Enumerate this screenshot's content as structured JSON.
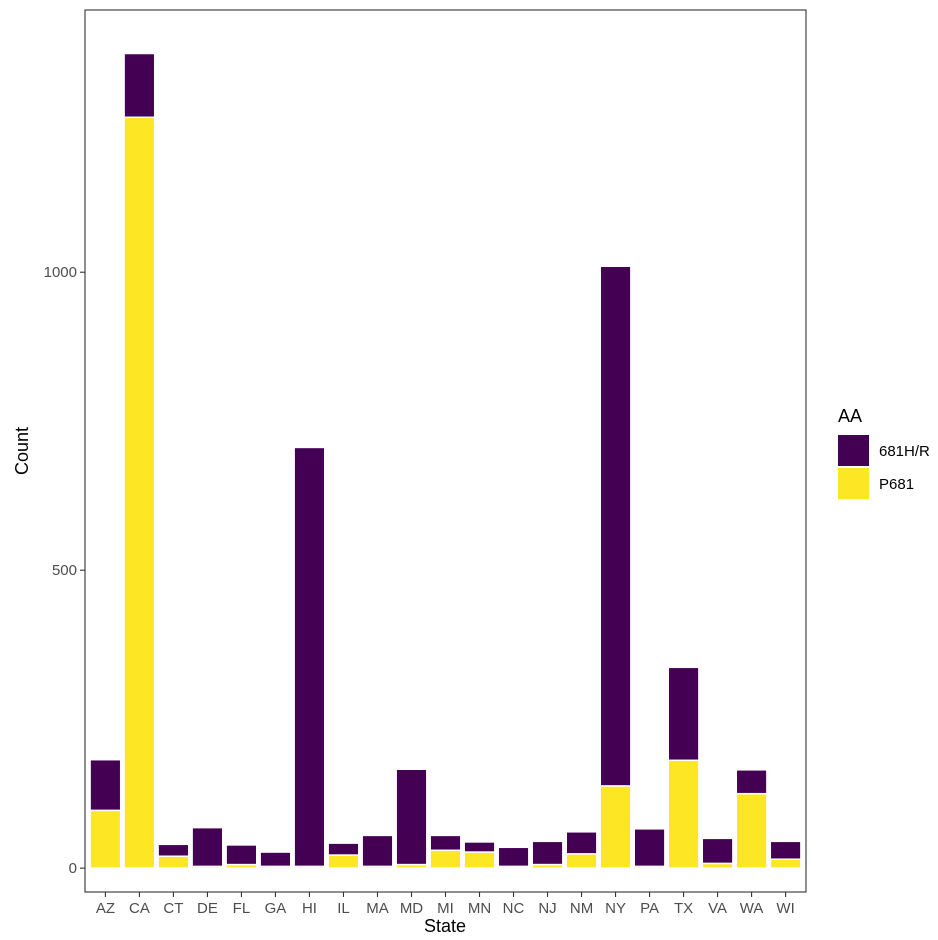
{
  "chart_data": {
    "type": "bar",
    "stacked": true,
    "title": "",
    "xlabel": "State",
    "ylabel": "Count",
    "categories": [
      "AZ",
      "CA",
      "CT",
      "DE",
      "FL",
      "GA",
      "HI",
      "IL",
      "MA",
      "MD",
      "MI",
      "MN",
      "NC",
      "NJ",
      "NM",
      "NY",
      "PA",
      "TX",
      "VA",
      "WA",
      "WI"
    ],
    "series": [
      {
        "name": "P681",
        "color": "#FDE725",
        "values": [
          97,
          1260,
          20,
          3,
          6,
          3,
          3,
          22,
          3,
          6,
          30,
          27,
          3,
          6,
          24,
          138,
          3,
          181,
          8,
          125,
          15
        ]
      },
      {
        "name": "681H/R",
        "color": "#440154",
        "values": [
          85,
          107,
          20,
          65,
          33,
          24,
          703,
          20,
          52,
          160,
          25,
          17,
          32,
          39,
          37,
          872,
          63,
          156,
          42,
          40,
          30
        ]
      }
    ],
    "ylim": [
      -40,
      1440
    ],
    "yticks": [
      0,
      500,
      1000
    ],
    "grid": false,
    "legend": {
      "title": "AA",
      "position": "right",
      "items": [
        "681H/R",
        "P681"
      ]
    }
  }
}
